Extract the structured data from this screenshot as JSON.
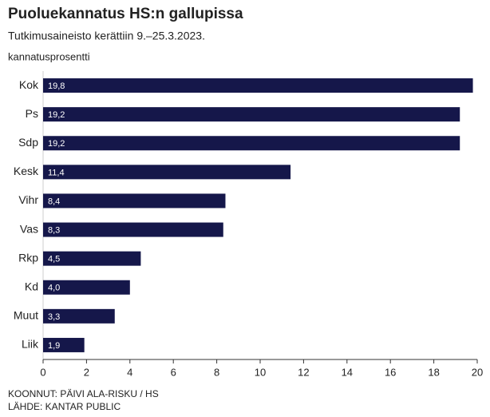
{
  "chart_data": {
    "type": "bar",
    "orientation": "horizontal",
    "title": "Puoluekannatus HS:n gallupissa",
    "subtitle": "Tutkimusaineisto kerättiin 9.–25.3.2023.",
    "axis_label": "kannatusprosentti",
    "categories": [
      "Kok",
      "Ps",
      "Sdp",
      "Kesk",
      "Vihr",
      "Vas",
      "Rkp",
      "Kd",
      "Muut",
      "Liik"
    ],
    "values": [
      19.8,
      19.2,
      19.2,
      11.4,
      8.4,
      8.3,
      4.5,
      4.0,
      3.3,
      1.9
    ],
    "value_labels": [
      "19,8",
      "19,2",
      "19,2",
      "11,4",
      "8,4",
      "8,3",
      "4,5",
      "4,0",
      "3,3",
      "1,9"
    ],
    "color": "#15174a",
    "xlim": [
      0,
      20
    ],
    "xticks": [
      0,
      2,
      4,
      6,
      8,
      10,
      12,
      14,
      16,
      18,
      20
    ],
    "credits": [
      "KOONNUT: PÄIVI ALA-RISKU / HS",
      "LÄHDE: KANTAR PUBLIC"
    ]
  }
}
